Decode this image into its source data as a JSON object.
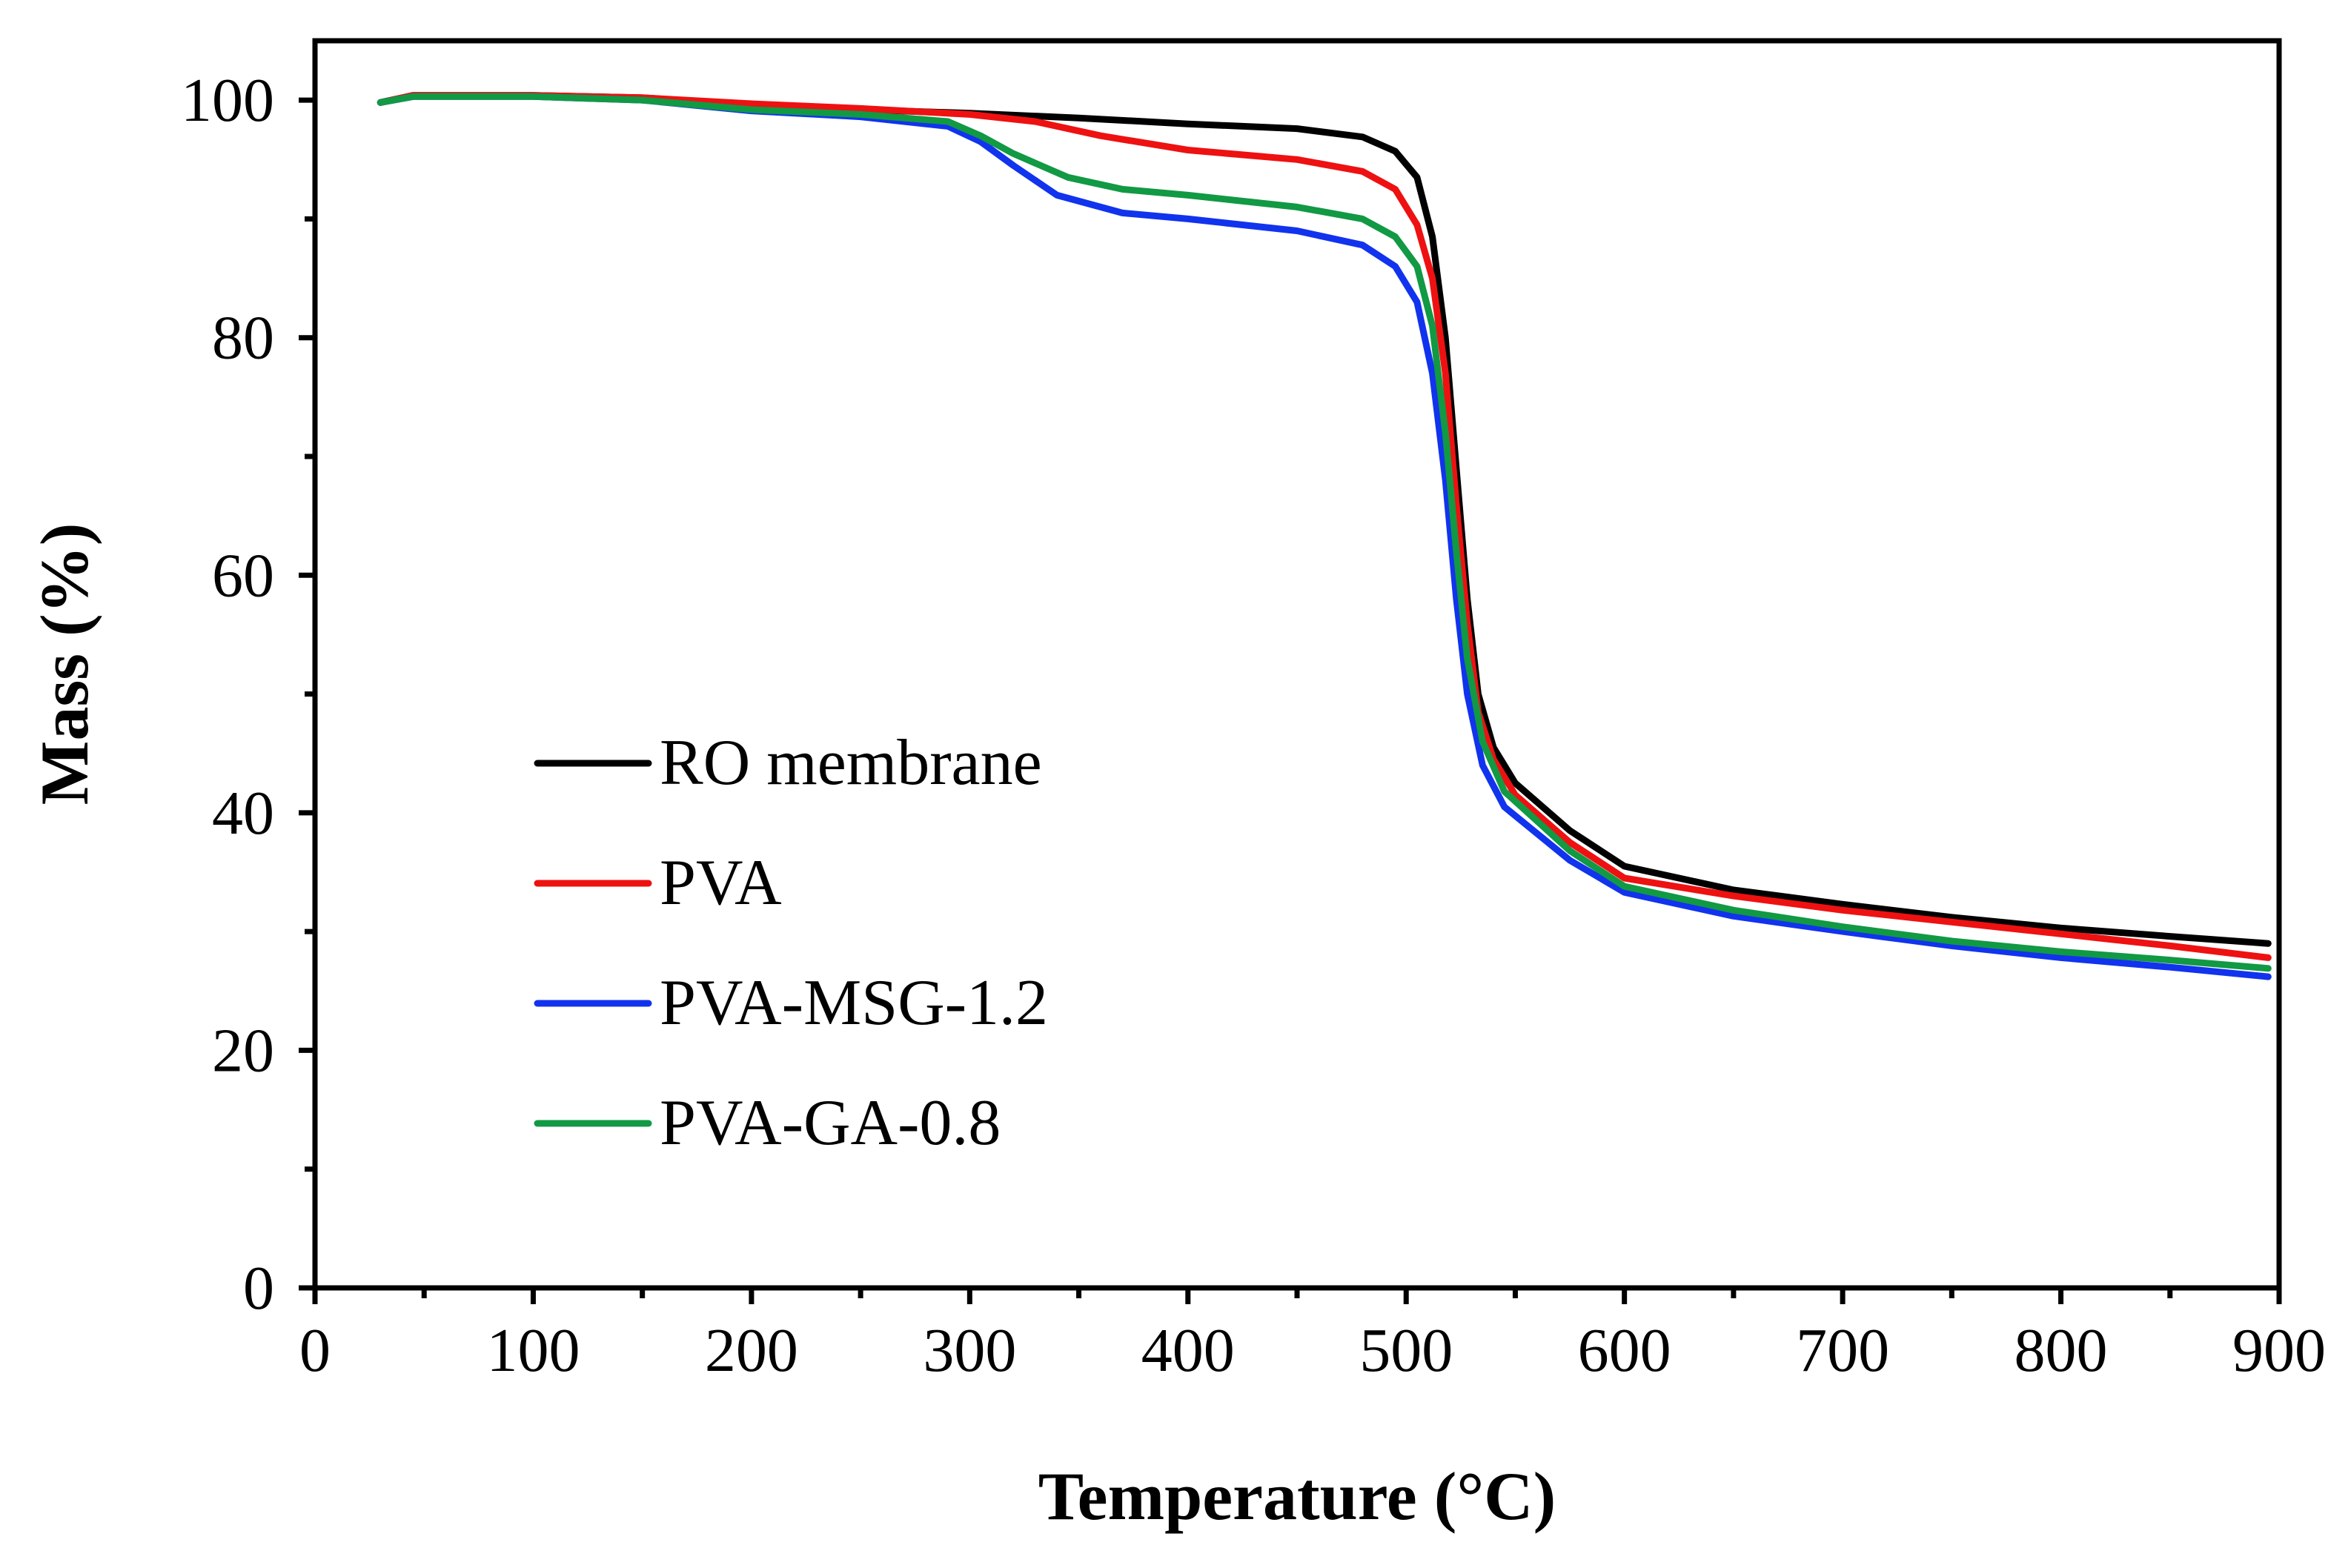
{
  "chart_data": {
    "type": "line",
    "title": "",
    "xlabel": "Temperature (°C)",
    "ylabel": "Mass (%)",
    "xlim": [
      0,
      900
    ],
    "ylim": [
      0,
      105
    ],
    "x_ticks": [
      0,
      100,
      200,
      300,
      400,
      500,
      600,
      700,
      800,
      900
    ],
    "x_tick_labels": [
      "0",
      "100",
      "200",
      "300",
      "400",
      "500",
      "600",
      "700",
      "800",
      "900"
    ],
    "x_minor_step": 50,
    "y_ticks": [
      0,
      20,
      40,
      60,
      80,
      100
    ],
    "y_tick_labels": [
      "0",
      "20",
      "40",
      "60",
      "80",
      "100"
    ],
    "y_minor_step": 10,
    "grid": false,
    "legend_position": "center-left",
    "series": [
      {
        "name": "RO membrane",
        "color": "#000000",
        "points": [
          [
            30,
            99.8
          ],
          [
            45,
            100.4
          ],
          [
            100,
            100.4
          ],
          [
            150,
            100.2
          ],
          [
            200,
            99.6
          ],
          [
            250,
            99.2
          ],
          [
            300,
            98.9
          ],
          [
            350,
            98.5
          ],
          [
            400,
            98.0
          ],
          [
            450,
            97.6
          ],
          [
            480,
            96.9
          ],
          [
            495,
            95.7
          ],
          [
            505,
            93.5
          ],
          [
            512,
            88.5
          ],
          [
            518,
            80.0
          ],
          [
            523,
            69.0
          ],
          [
            528,
            58.0
          ],
          [
            533,
            50.0
          ],
          [
            540,
            45.5
          ],
          [
            550,
            42.5
          ],
          [
            575,
            38.5
          ],
          [
            600,
            35.5
          ],
          [
            650,
            33.5
          ],
          [
            700,
            32.3
          ],
          [
            750,
            31.2
          ],
          [
            800,
            30.3
          ],
          [
            850,
            29.6
          ],
          [
            895,
            29.0
          ]
        ]
      },
      {
        "name": "PVA",
        "color": "#ee1111",
        "points": [
          [
            30,
            99.8
          ],
          [
            45,
            100.4
          ],
          [
            100,
            100.4
          ],
          [
            150,
            100.2
          ],
          [
            200,
            99.7
          ],
          [
            250,
            99.3
          ],
          [
            300,
            98.8
          ],
          [
            330,
            98.2
          ],
          [
            360,
            97.0
          ],
          [
            400,
            95.8
          ],
          [
            450,
            95.0
          ],
          [
            480,
            94.0
          ],
          [
            495,
            92.5
          ],
          [
            505,
            89.5
          ],
          [
            512,
            85.0
          ],
          [
            518,
            77.0
          ],
          [
            523,
            66.0
          ],
          [
            528,
            56.0
          ],
          [
            533,
            48.5
          ],
          [
            540,
            44.5
          ],
          [
            550,
            41.5
          ],
          [
            575,
            37.5
          ],
          [
            600,
            34.5
          ],
          [
            650,
            33.0
          ],
          [
            700,
            31.8
          ],
          [
            750,
            30.8
          ],
          [
            800,
            29.8
          ],
          [
            850,
            28.8
          ],
          [
            895,
            27.8
          ]
        ]
      },
      {
        "name": "PVA-MSG-1.2",
        "color": "#1133ee",
        "points": [
          [
            30,
            99.8
          ],
          [
            45,
            100.3
          ],
          [
            100,
            100.3
          ],
          [
            150,
            100.0
          ],
          [
            200,
            99.1
          ],
          [
            250,
            98.6
          ],
          [
            290,
            97.8
          ],
          [
            305,
            96.5
          ],
          [
            320,
            94.5
          ],
          [
            340,
            92.0
          ],
          [
            370,
            90.5
          ],
          [
            400,
            90.0
          ],
          [
            450,
            89.0
          ],
          [
            480,
            87.8
          ],
          [
            495,
            86.0
          ],
          [
            505,
            83.0
          ],
          [
            512,
            77.0
          ],
          [
            518,
            68.0
          ],
          [
            523,
            58.0
          ],
          [
            528,
            50.0
          ],
          [
            535,
            44.0
          ],
          [
            545,
            40.5
          ],
          [
            575,
            36.0
          ],
          [
            600,
            33.3
          ],
          [
            650,
            31.3
          ],
          [
            700,
            30.0
          ],
          [
            750,
            28.8
          ],
          [
            800,
            27.8
          ],
          [
            850,
            27.0
          ],
          [
            895,
            26.2
          ]
        ]
      },
      {
        "name": "PVA-GA-0.8",
        "color": "#119944",
        "points": [
          [
            30,
            99.8
          ],
          [
            45,
            100.3
          ],
          [
            100,
            100.3
          ],
          [
            150,
            100.0
          ],
          [
            200,
            99.2
          ],
          [
            250,
            98.8
          ],
          [
            290,
            98.2
          ],
          [
            305,
            97.0
          ],
          [
            320,
            95.5
          ],
          [
            345,
            93.5
          ],
          [
            370,
            92.5
          ],
          [
            400,
            92.0
          ],
          [
            450,
            91.0
          ],
          [
            480,
            90.0
          ],
          [
            495,
            88.5
          ],
          [
            505,
            86.0
          ],
          [
            512,
            81.0
          ],
          [
            518,
            72.0
          ],
          [
            523,
            62.0
          ],
          [
            528,
            53.0
          ],
          [
            535,
            46.0
          ],
          [
            545,
            41.8
          ],
          [
            575,
            36.8
          ],
          [
            600,
            33.8
          ],
          [
            650,
            31.8
          ],
          [
            700,
            30.4
          ],
          [
            750,
            29.2
          ],
          [
            800,
            28.3
          ],
          [
            850,
            27.6
          ],
          [
            895,
            26.9
          ]
        ]
      }
    ]
  }
}
